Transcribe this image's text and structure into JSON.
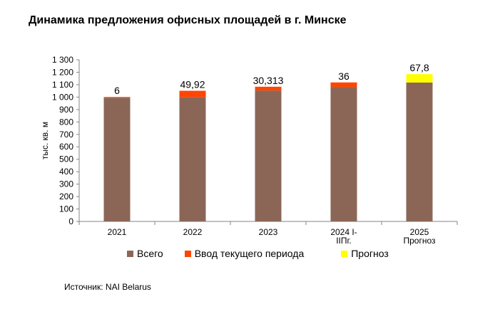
{
  "title": "Динамика предложения офисных площадей в г. Минске",
  "source": "Источник: NAI Belarus",
  "chart_data": {
    "type": "bar",
    "stacked": true,
    "categories": [
      [
        "2021"
      ],
      [
        "2022"
      ],
      [
        "2023"
      ],
      [
        "2024 I-",
        "IIПг."
      ],
      [
        "2025",
        "Прогноз"
      ]
    ],
    "series": [
      {
        "name": "Всего",
        "color": "#8B6657",
        "values": [
          995,
          1001,
          1053,
          1082,
          1117
        ]
      },
      {
        "name": "Ввод текущего периода",
        "color": "#FF4500",
        "values": [
          6,
          49.92,
          30.313,
          36,
          0
        ]
      },
      {
        "name": "Прогноз",
        "color": "#FFFF00",
        "values": [
          0,
          0,
          0,
          0,
          67.8
        ]
      }
    ],
    "data_labels": [
      "6",
      "49,92",
      "30,313",
      "36",
      "67,8"
    ],
    "ylabel": "тыс. кв. м",
    "xlabel": "",
    "ylim": [
      0,
      1300
    ],
    "yticks": [
      0,
      100,
      200,
      300,
      400,
      500,
      600,
      700,
      800,
      900,
      1000,
      1100,
      1200,
      1300
    ],
    "ytick_labels": [
      "0",
      "100",
      "200",
      "300",
      "400",
      "500",
      "600",
      "700",
      "800",
      "900",
      "1 000",
      "1 100",
      "1 200",
      "1 300"
    ],
    "grid": false,
    "legend": "bottom"
  }
}
